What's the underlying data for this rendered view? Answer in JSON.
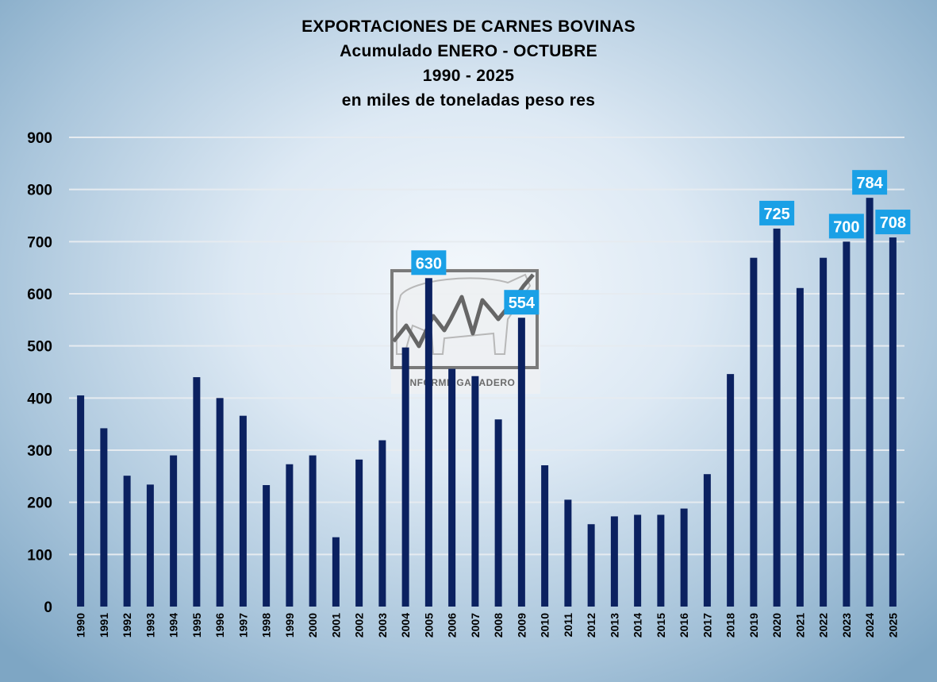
{
  "chart_data": {
    "type": "bar",
    "title": "EXPORTACIONES DE CARNES BOVINAS",
    "subtitle_lines": [
      "Acumulado ENERO - OCTUBRE",
      "1990 - 2025",
      "en miles de toneladas peso res"
    ],
    "categories": [
      "1990",
      "1991",
      "1992",
      "1993",
      "1994",
      "1995",
      "1996",
      "1997",
      "1998",
      "1999",
      "2000",
      "2001",
      "2002",
      "2003",
      "2004",
      "2005",
      "2006",
      "2007",
      "2008",
      "2009",
      "2010",
      "2011",
      "2012",
      "2013",
      "2014",
      "2015",
      "2016",
      "2017",
      "2018",
      "2019",
      "2020",
      "2021",
      "2022",
      "2023",
      "2024",
      "2025"
    ],
    "values": [
      405,
      342,
      251,
      234,
      290,
      440,
      400,
      366,
      233,
      273,
      290,
      133,
      282,
      319,
      497,
      630,
      456,
      442,
      359,
      554,
      271,
      205,
      158,
      173,
      176,
      176,
      188,
      254,
      446,
      669,
      725,
      611,
      669,
      700,
      784,
      708
    ],
    "data_labels": [
      {
        "category": "2005",
        "text": "630"
      },
      {
        "category": "2009",
        "text": "554"
      },
      {
        "category": "2020",
        "text": "725"
      },
      {
        "category": "2023",
        "text": "700"
      },
      {
        "category": "2024",
        "text": "784"
      },
      {
        "category": "2025",
        "text": "708"
      }
    ],
    "ylim": [
      0,
      900
    ],
    "yticks": [
      0,
      100,
      200,
      300,
      400,
      500,
      600,
      700,
      800,
      900
    ],
    "grid": true,
    "legend": "none",
    "colors": {
      "bar": "#0b2160",
      "label_bg": "#1aa0e6",
      "label_text": "#ffffff",
      "grid": "#e6ebf0"
    }
  },
  "watermark": {
    "text": "INFORME GANADERO"
  }
}
